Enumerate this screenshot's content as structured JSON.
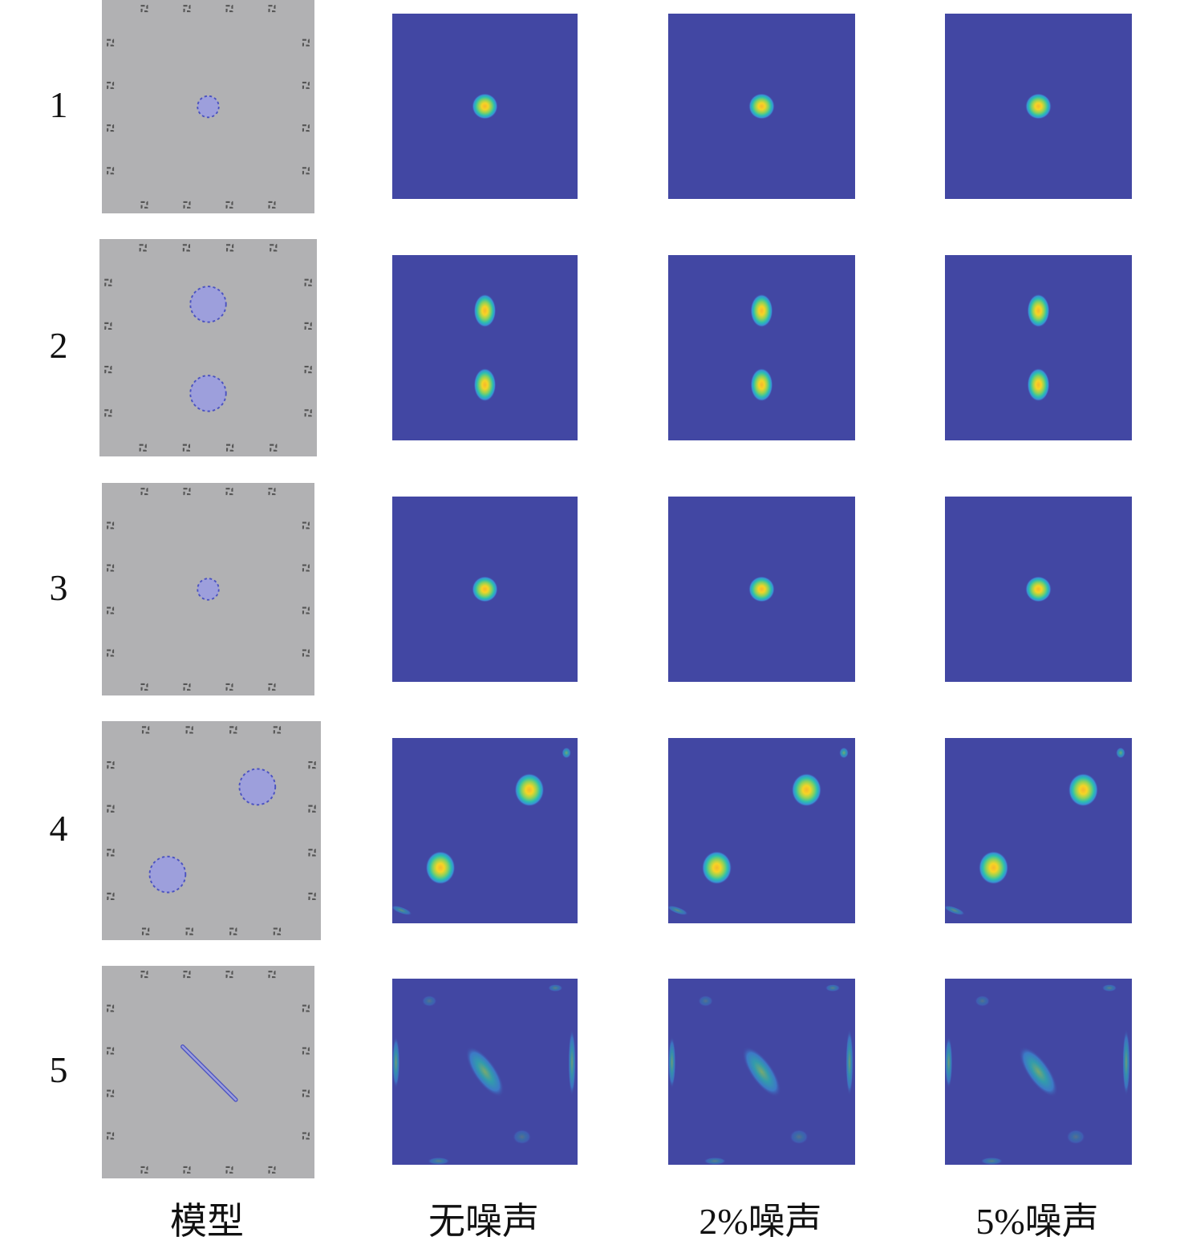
{
  "row_labels": [
    "1",
    "2",
    "3",
    "4",
    "5"
  ],
  "column_labels": [
    "模型",
    "无噪声",
    "2%噪声",
    "5%噪声"
  ],
  "colors": {
    "model_background": "#b1b1b3",
    "inclusion_fill": "#9d9fdc",
    "inclusion_edge": "#4b52c0",
    "electrode": "#555555",
    "recon_background": "#4247a3",
    "colormap": [
      "#4247a3",
      "#3a8fd6",
      "#2bbfb0",
      "#8ed25a",
      "#f5d426",
      "#f7b82c"
    ]
  }
}
